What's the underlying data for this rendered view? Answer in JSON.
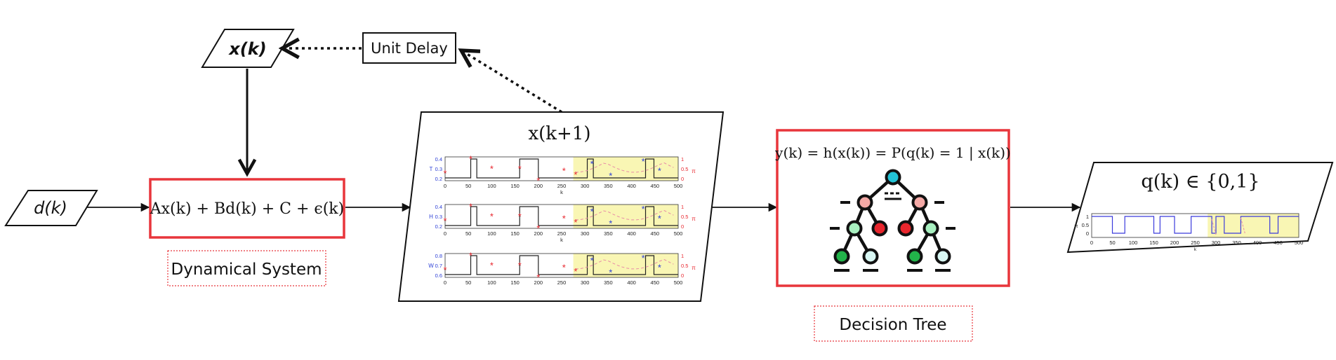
{
  "inputs": {
    "disturbance_label": "d(k)",
    "state_label": "x(k)"
  },
  "blocks": {
    "unit_delay": "Unit Delay",
    "dynamical_equation": "Ax(k) + Bd(k) + C + ϵ(k)",
    "dynamical_caption": "Dynamical System",
    "next_state_title": "x(k+1)",
    "tree_equation": "y(k) = h(x(k)) = P(q(k) = 1 | x(k))",
    "tree_caption": "Decision Tree",
    "output_title": "q(k) ∈ {0,1}"
  },
  "colors": {
    "highlight_red": "#e8353b",
    "caption_border": "#e8353b",
    "plot_shade": "#f9f6b4",
    "series_line": "#222222",
    "marker_red": "#e8262d",
    "marker_blue": "#2c3fd6",
    "output_line": "#3b3bdc",
    "node_root": "#22c3d6",
    "node_pink": "#f4a9a6",
    "node_red": "#e8262d",
    "node_lightgreen": "#a8f0c0",
    "node_green": "#22b34a",
    "node_pale": "#d8f7f3"
  },
  "mini_plots": {
    "x_ticks": [
      "0",
      "50",
      "100",
      "150",
      "200",
      "250",
      "300",
      "350",
      "400",
      "450",
      "500"
    ],
    "x_axis_label": "k",
    "right_ticks": [
      "0",
      "0.5",
      "1"
    ],
    "right_axis_symbol": "π",
    "plots": [
      {
        "y_label": "T",
        "y_ticks": [
          "0.2",
          "0.3",
          "0.4"
        ]
      },
      {
        "y_label": "H",
        "y_ticks": [
          "0.2",
          "0.3",
          "0.4"
        ]
      },
      {
        "y_label": "W",
        "y_ticks": [
          "0.6",
          "0.7",
          "0.8"
        ]
      }
    ],
    "output_plot": {
      "y_label": "π",
      "y_ticks": [
        "0",
        "0.5",
        "1"
      ],
      "x_axis_label": "k"
    }
  }
}
